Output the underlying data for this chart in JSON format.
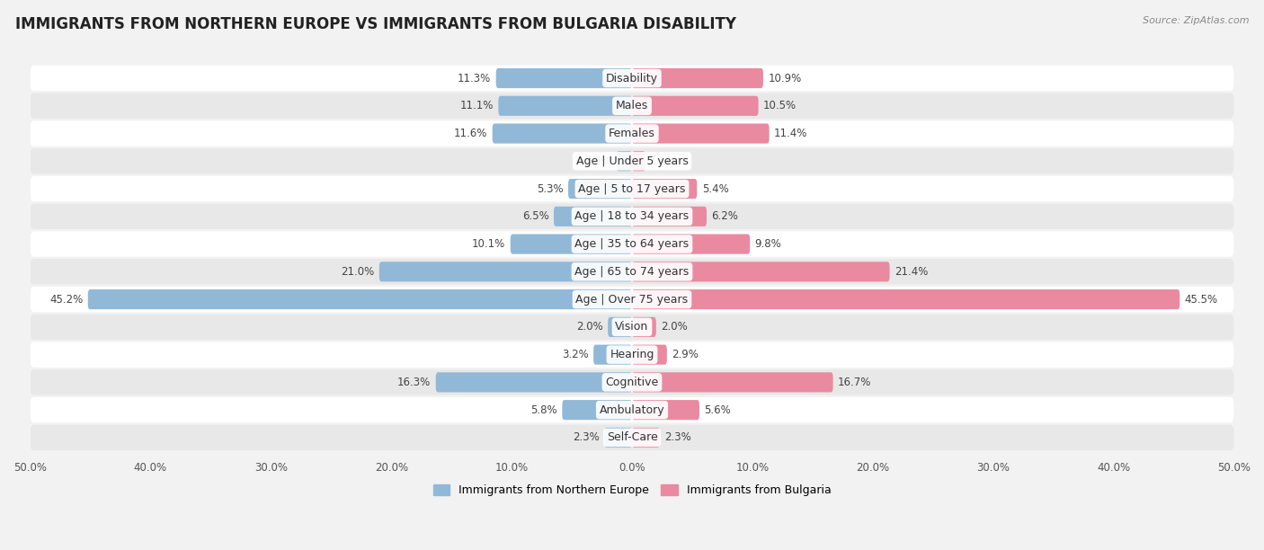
{
  "title": "IMMIGRANTS FROM NORTHERN EUROPE VS IMMIGRANTS FROM BULGARIA DISABILITY",
  "source": "Source: ZipAtlas.com",
  "categories": [
    "Disability",
    "Males",
    "Females",
    "Age | Under 5 years",
    "Age | 5 to 17 years",
    "Age | 18 to 34 years",
    "Age | 35 to 64 years",
    "Age | 65 to 74 years",
    "Age | Over 75 years",
    "Vision",
    "Hearing",
    "Cognitive",
    "Ambulatory",
    "Self-Care"
  ],
  "left_values": [
    11.3,
    11.1,
    11.6,
    1.3,
    5.3,
    6.5,
    10.1,
    21.0,
    45.2,
    2.0,
    3.2,
    16.3,
    5.8,
    2.3
  ],
  "right_values": [
    10.9,
    10.5,
    11.4,
    1.1,
    5.4,
    6.2,
    9.8,
    21.4,
    45.5,
    2.0,
    2.9,
    16.7,
    5.6,
    2.3
  ],
  "left_color": "#92b8d8",
  "right_color": "#e98aa0",
  "max_val": 50.0,
  "left_label": "Immigrants from Northern Europe",
  "right_label": "Immigrants from Bulgaria",
  "background_color": "#f2f2f2",
  "row_bg_even": "#ffffff",
  "row_bg_odd": "#e8e8e8",
  "title_fontsize": 12,
  "label_fontsize": 9,
  "value_fontsize": 8.5
}
